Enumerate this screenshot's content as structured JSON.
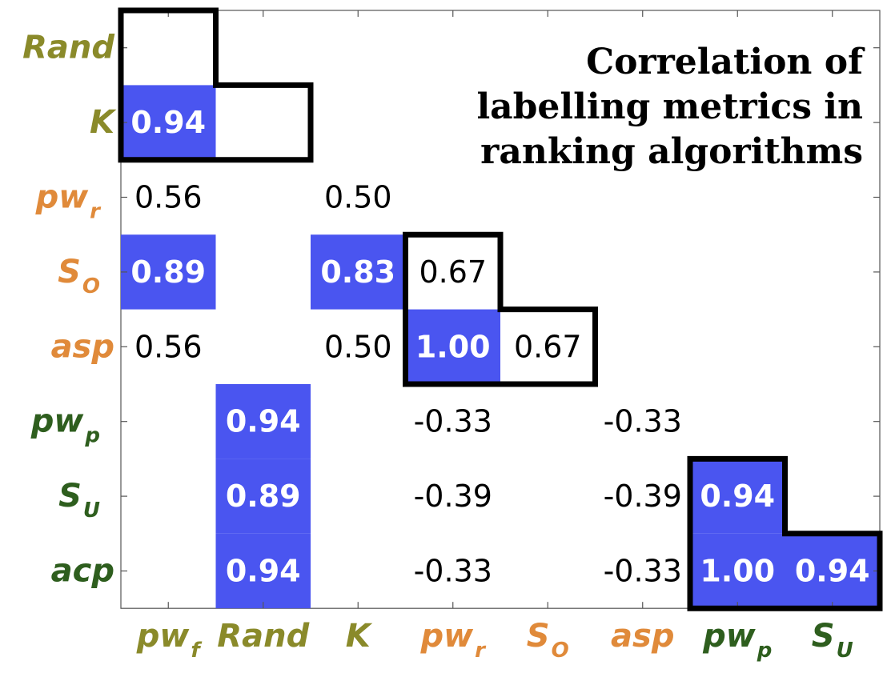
{
  "colors": {
    "highlight": "#4a55f0",
    "group_random": "#8a8a2a",
    "group_r": "#e08a3a",
    "group_p": "#2e5e1e",
    "frame": "#000000"
  },
  "chart_data": {
    "type": "heatmap",
    "title_lines": [
      "Correlation of",
      "labelling metrics in",
      "ranking algorithms"
    ],
    "row_labels": [
      {
        "base": "Rand",
        "sub": "",
        "group": "group_random"
      },
      {
        "base": "K",
        "sub": "",
        "group": "group_random"
      },
      {
        "base": "pw",
        "sub": "r",
        "group": "group_r"
      },
      {
        "base": "S",
        "sub": "O",
        "group": "group_r"
      },
      {
        "base": "asp",
        "sub": "",
        "group": "group_r"
      },
      {
        "base": "pw",
        "sub": "p",
        "group": "group_p"
      },
      {
        "base": "S",
        "sub": "U",
        "group": "group_p"
      },
      {
        "base": "acp",
        "sub": "",
        "group": "group_p"
      }
    ],
    "col_labels": [
      {
        "base": "pw",
        "sub": "f",
        "group": "group_random"
      },
      {
        "base": "Rand",
        "sub": "",
        "group": "group_random"
      },
      {
        "base": "K",
        "sub": "",
        "group": "group_random"
      },
      {
        "base": "pw",
        "sub": "r",
        "group": "group_r"
      },
      {
        "base": "S",
        "sub": "O",
        "group": "group_r"
      },
      {
        "base": "asp",
        "sub": "",
        "group": "group_r"
      },
      {
        "base": "pw",
        "sub": "p",
        "group": "group_p"
      },
      {
        "base": "S",
        "sub": "U",
        "group": "group_p"
      }
    ],
    "cells": [
      {
        "row": 1,
        "col": 0,
        "label": "0.94",
        "highlight": true
      },
      {
        "row": 2,
        "col": 0,
        "label": "0.56",
        "highlight": false
      },
      {
        "row": 2,
        "col": 2,
        "label": "0.50",
        "highlight": false
      },
      {
        "row": 3,
        "col": 0,
        "label": "0.89",
        "highlight": true
      },
      {
        "row": 3,
        "col": 2,
        "label": "0.83",
        "highlight": true
      },
      {
        "row": 3,
        "col": 3,
        "label": "0.67",
        "highlight": false
      },
      {
        "row": 4,
        "col": 0,
        "label": "0.56",
        "highlight": false
      },
      {
        "row": 4,
        "col": 2,
        "label": "0.50",
        "highlight": false
      },
      {
        "row": 4,
        "col": 3,
        "label": "1.00",
        "highlight": true
      },
      {
        "row": 4,
        "col": 4,
        "label": "0.67",
        "highlight": false
      },
      {
        "row": 5,
        "col": 1,
        "label": "0.94",
        "highlight": true
      },
      {
        "row": 5,
        "col": 3,
        "label": "-0.33",
        "highlight": false
      },
      {
        "row": 5,
        "col": 5,
        "label": "-0.33",
        "highlight": false
      },
      {
        "row": 6,
        "col": 1,
        "label": "0.89",
        "highlight": true
      },
      {
        "row": 6,
        "col": 3,
        "label": "-0.39",
        "highlight": false
      },
      {
        "row": 6,
        "col": 5,
        "label": "-0.39",
        "highlight": false
      },
      {
        "row": 6,
        "col": 6,
        "label": "0.94",
        "highlight": true
      },
      {
        "row": 7,
        "col": 1,
        "label": "0.94",
        "highlight": true
      },
      {
        "row": 7,
        "col": 3,
        "label": "-0.33",
        "highlight": false
      },
      {
        "row": 7,
        "col": 5,
        "label": "-0.33",
        "highlight": false
      },
      {
        "row": 7,
        "col": 6,
        "label": "1.00",
        "highlight": true
      },
      {
        "row": 7,
        "col": 7,
        "label": "0.94",
        "highlight": true
      }
    ],
    "group_frames": [
      {
        "name": "random-group-frame",
        "rows": [
          0,
          1
        ],
        "cols": [
          0,
          1
        ]
      },
      {
        "name": "r-group-frame",
        "rows": [
          3,
          4
        ],
        "cols": [
          3,
          4
        ]
      },
      {
        "name": "p-group-frame",
        "rows": [
          6,
          7
        ],
        "cols": [
          6,
          7
        ]
      }
    ],
    "grid": false
  }
}
